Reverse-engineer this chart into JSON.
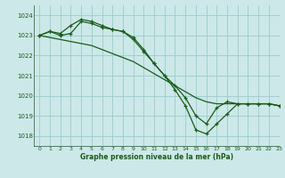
{
  "xlabel": "Graphe pression niveau de la mer (hPa)",
  "bg_color": "#cce8e8",
  "grid_color": "#99cccc",
  "line_color": "#1a5c1a",
  "ylim": [
    1017.5,
    1024.5
  ],
  "xlim": [
    -0.5,
    23
  ],
  "yticks": [
    1018,
    1019,
    1020,
    1021,
    1022,
    1023,
    1024
  ],
  "xticks": [
    0,
    1,
    2,
    3,
    4,
    5,
    6,
    7,
    8,
    9,
    10,
    11,
    12,
    13,
    14,
    15,
    16,
    17,
    18,
    19,
    20,
    21,
    22,
    23
  ],
  "series1": [
    1023.0,
    1023.2,
    1023.1,
    1023.5,
    1023.8,
    1023.7,
    1023.5,
    1023.3,
    1023.2,
    1022.9,
    1022.3,
    1021.6,
    1021.0,
    1020.5,
    1019.9,
    1019.0,
    1018.6,
    1019.4,
    1019.7,
    1019.6,
    1019.6,
    1019.6,
    1019.6,
    1019.5
  ],
  "series2": [
    1023.0,
    1022.9,
    1022.8,
    1022.7,
    1022.6,
    1022.5,
    1022.3,
    1022.1,
    1021.9,
    1021.7,
    1021.4,
    1021.1,
    1020.8,
    1020.5,
    1020.2,
    1019.9,
    1019.7,
    1019.6,
    1019.6,
    1019.6,
    1019.6,
    1019.6,
    1019.6,
    1019.5
  ],
  "series3": [
    1023.0,
    1023.2,
    1023.0,
    1023.1,
    1023.7,
    1023.6,
    1023.4,
    1023.3,
    1023.2,
    1022.8,
    1022.2,
    1021.6,
    1021.0,
    1020.3,
    1019.5,
    1018.3,
    1018.1,
    1018.6,
    1019.1,
    1019.6,
    1019.6,
    1019.6,
    1019.6,
    1019.5
  ],
  "ytick_labels": [
    "1018",
    "1019",
    "1020",
    "1021",
    "1022",
    "1023",
    "1024"
  ],
  "xtick_labels": [
    "0",
    "1",
    "2",
    "3",
    "4",
    "5",
    "6",
    "7",
    "8",
    "9",
    "10",
    "11",
    "12",
    "13",
    "14",
    "15",
    "16",
    "17",
    "18",
    "19",
    "20",
    "21",
    "22",
    "23"
  ]
}
